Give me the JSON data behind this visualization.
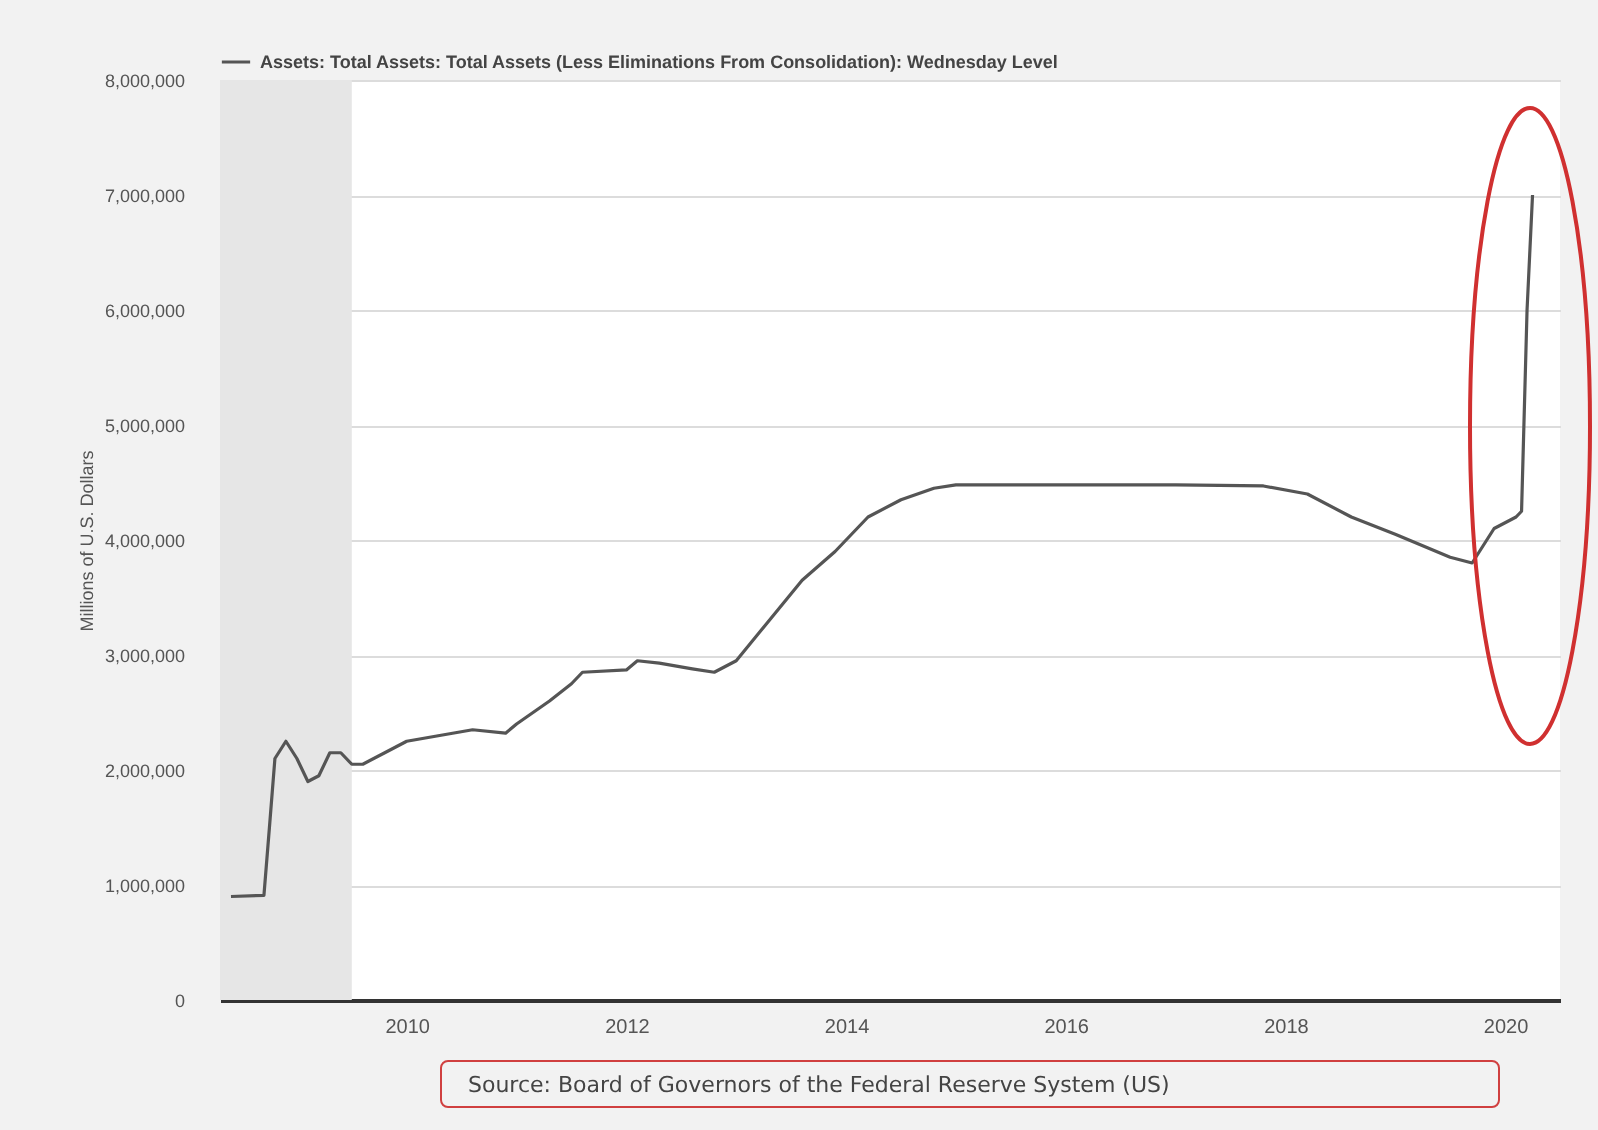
{
  "chart_data": {
    "type": "line",
    "ylabel": "Millions of U.S. Dollars",
    "annotations": [
      "Source: Board of Governors of the Federal Reserve System (US)"
    ],
    "x": [
      2008.4,
      2008.7,
      2008.75,
      2008.8,
      2008.9,
      2009.0,
      2009.1,
      2009.2,
      2009.3,
      2009.4,
      2009.5,
      2009.6,
      2009.8,
      2010.0,
      2010.3,
      2010.6,
      2010.9,
      2011.0,
      2011.3,
      2011.5,
      2011.6,
      2012.0,
      2012.1,
      2012.3,
      2012.6,
      2012.8,
      2013.0,
      2013.3,
      2013.6,
      2013.9,
      2014.2,
      2014.5,
      2014.8,
      2015.0,
      2016.0,
      2017.0,
      2017.8,
      2018.2,
      2018.6,
      2019.0,
      2019.5,
      2019.7,
      2019.9,
      2020.1,
      2020.15,
      2020.2,
      2020.25
    ],
    "series": [
      {
        "name": "Assets: Total Assets: Total Assets (Less Eliminations From Consolidation): Wednesday Level",
        "color": "#555555",
        "values": [
          900000,
          910000,
          1500000,
          2100000,
          2250000,
          2100000,
          1900000,
          1950000,
          2150000,
          2150000,
          2050000,
          2050000,
          2150000,
          2250000,
          2300000,
          2350000,
          2320000,
          2400000,
          2600000,
          2750000,
          2850000,
          2870000,
          2950000,
          2930000,
          2880000,
          2850000,
          2950000,
          3300000,
          3650000,
          3900000,
          4200000,
          4350000,
          4450000,
          4480000,
          4480000,
          4480000,
          4470000,
          4400000,
          4200000,
          4050000,
          3850000,
          3800000,
          4100000,
          4200000,
          4250000,
          6000000,
          7000000
        ]
      }
    ],
    "bands": [
      {
        "axis": "x",
        "from": 2008.3,
        "to": 2009.5,
        "color": "#e6e6e6"
      }
    ],
    "xlim": [
      2008.3,
      2020.5
    ],
    "xticks": [
      2010,
      2012,
      2014,
      2016,
      2018,
      2020
    ],
    "ylim": [
      0,
      8000000
    ],
    "yticks": [
      0,
      {
        "value": 1000000,
        "label": "1,000,000"
      },
      {
        "value": 2000000,
        "label": "2,000,000"
      },
      {
        "value": 3000000,
        "label": "3,000,000"
      },
      {
        "value": 4000000,
        "label": "4,000,000"
      },
      {
        "value": 5000000,
        "label": "5,000,000"
      },
      {
        "value": 6000000,
        "label": "6,000,000"
      },
      {
        "value": 7000000,
        "label": "7,000,000"
      },
      {
        "value": 8000000,
        "label": "8,000,000"
      }
    ],
    "grid": "y",
    "legend": "top left",
    "line_style": "solid",
    "marker": "none"
  }
}
